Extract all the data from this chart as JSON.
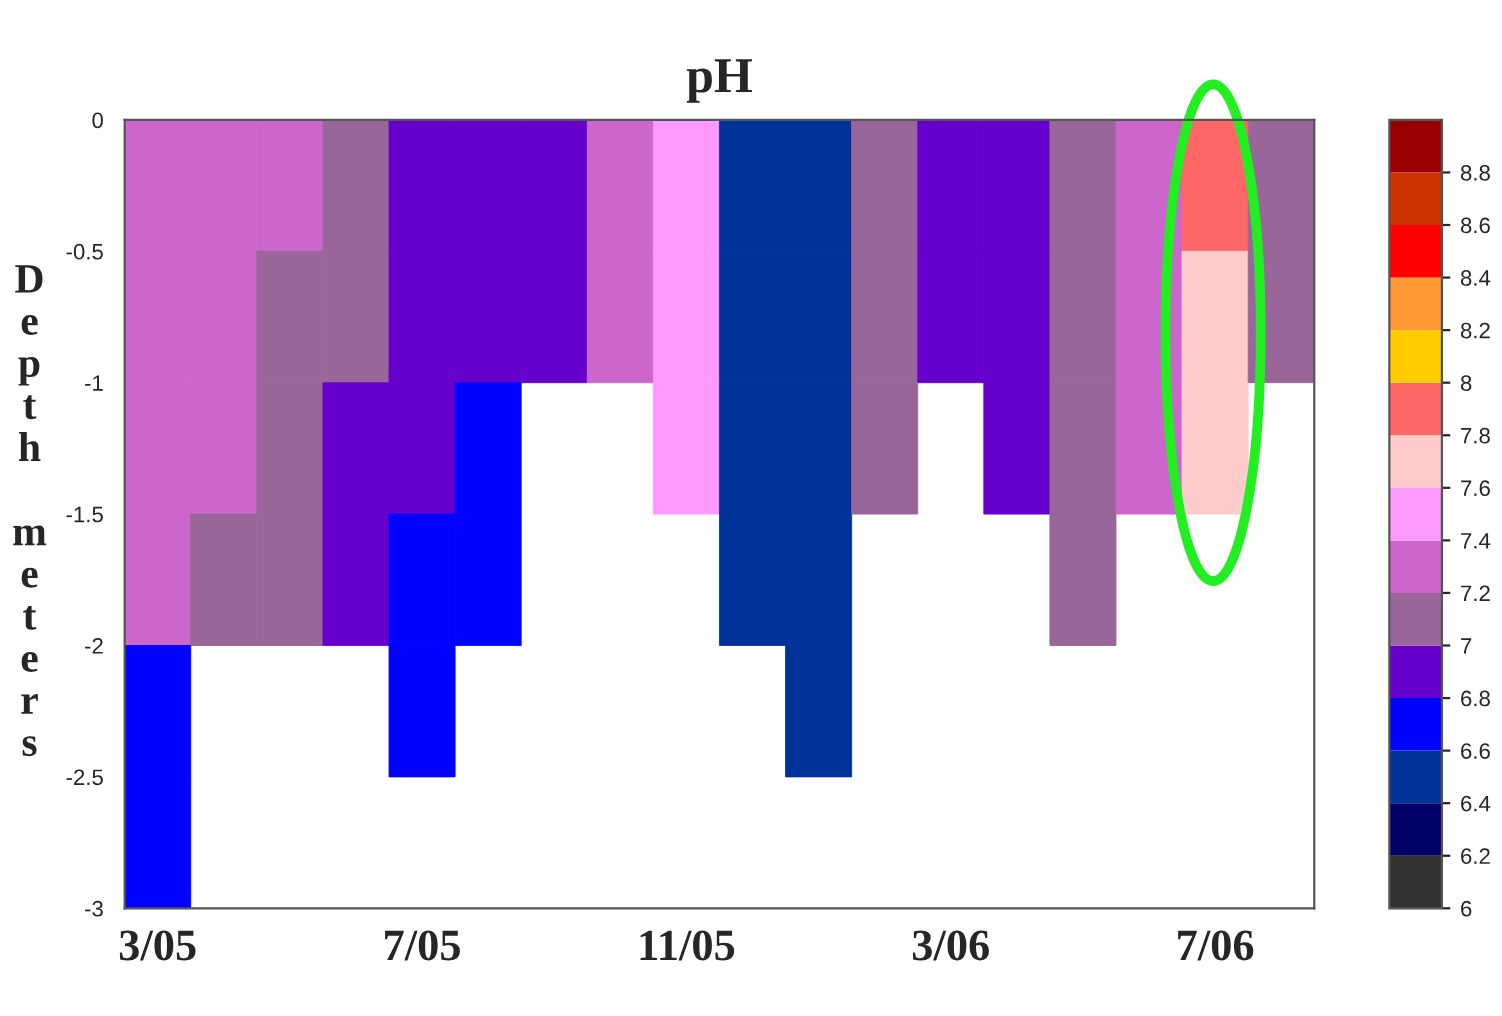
{
  "chart_data": {
    "type": "heatmap",
    "title": "pH",
    "ylabel": "Depth meters",
    "categories": [
      "3/05",
      null,
      null,
      null,
      "7/05",
      null,
      null,
      null,
      "11/05",
      null,
      null,
      null,
      "3/06",
      null,
      null,
      null,
      "7/06",
      null
    ],
    "ylim": [
      -3,
      0
    ],
    "yticks": [
      {
        "value": -3,
        "label": "-3"
      },
      {
        "value": -2.5,
        "label": "-2.5"
      },
      {
        "value": -2,
        "label": "-2"
      },
      {
        "value": -1.5,
        "label": "-1.5"
      },
      {
        "value": -1,
        "label": "-1"
      },
      {
        "value": -0.5,
        "label": "-0.5"
      },
      0
    ],
    "cells": [
      [
        7.3,
        7.3,
        7.3,
        7.1,
        6.9,
        6.9,
        6.9,
        7.3,
        7.5,
        6.5,
        6.5,
        7.1,
        6.9,
        6.9,
        7.1,
        7.3,
        7.9,
        7.1
      ],
      [
        7.3,
        7.3,
        7.1,
        7.1,
        6.9,
        6.9,
        6.9,
        7.3,
        7.5,
        6.5,
        6.5,
        7.1,
        6.9,
        6.9,
        7.1,
        7.3,
        7.7,
        7.1
      ],
      [
        7.3,
        7.3,
        7.1,
        6.9,
        6.9,
        6.7,
        null,
        null,
        7.5,
        6.5,
        6.5,
        7.1,
        null,
        6.9,
        7.1,
        7.3,
        7.7,
        null
      ],
      [
        7.3,
        7.1,
        7.1,
        6.9,
        6.7,
        6.7,
        null,
        null,
        null,
        6.5,
        6.5,
        null,
        null,
        null,
        7.1,
        null,
        null,
        null
      ],
      [
        6.7,
        null,
        null,
        null,
        6.7,
        null,
        null,
        null,
        null,
        null,
        6.5,
        null,
        null,
        null,
        null,
        null,
        null,
        null
      ],
      [
        6.7,
        null,
        null,
        null,
        null,
        null,
        null,
        null,
        null,
        null,
        null,
        null,
        null,
        null,
        null,
        null,
        null,
        null
      ]
    ],
    "clim": [
      6,
      9
    ],
    "cticks": [
      6,
      6.2,
      6.4,
      6.6,
      6.8,
      7,
      7.2,
      7.4,
      7.6,
      7.8,
      8,
      8.2,
      8.4,
      8.6,
      8.8
    ],
    "colors": [
      "#333333",
      "#000066",
      "#003399",
      "#0000ff",
      "#6600cc",
      "#996699",
      "#cc66cc",
      "#ff99ff",
      "#ffcccc",
      "#ff6666",
      "#ffcc00",
      "#ff9933",
      "#ff0000",
      "#cc3300",
      "#990000"
    ]
  }
}
